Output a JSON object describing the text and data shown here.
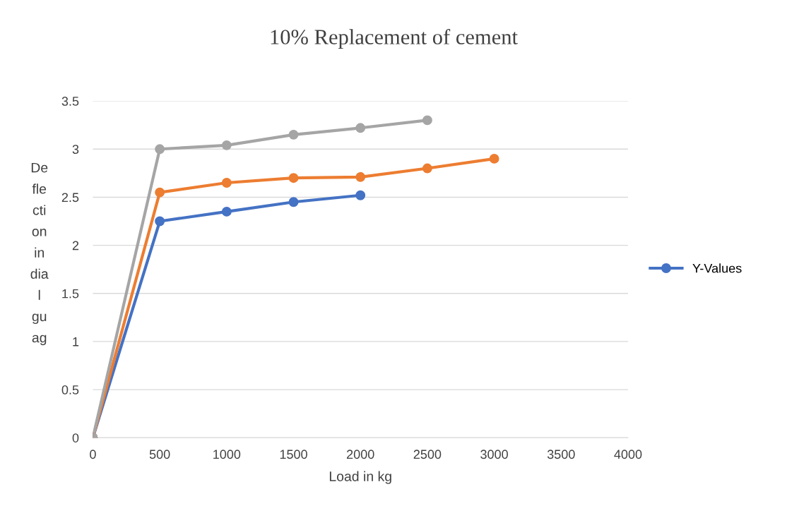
{
  "chart_data": {
    "type": "line",
    "title": "10% Replacement of cement",
    "xlabel": "Load in kg",
    "ylabel": "De\nfle\ncti\non\nin\ndia\nl\ngu\nag",
    "series": [
      {
        "name": "Y-Values",
        "color": "#4472c4",
        "x": [
          0,
          500,
          1000,
          1500,
          2000
        ],
        "values": [
          0,
          2.25,
          2.35,
          2.45,
          2.52
        ]
      },
      {
        "color": "#ed7d31",
        "x": [
          0,
          500,
          1000,
          1500,
          2000,
          2500,
          3000
        ],
        "values": [
          0,
          2.55,
          2.65,
          2.7,
          2.71,
          2.8,
          2.9
        ]
      },
      {
        "color": "#a5a5a5",
        "x": [
          0,
          500,
          1000,
          1500,
          2000,
          2500
        ],
        "values": [
          0,
          3.0,
          3.04,
          3.15,
          3.22,
          3.3
        ]
      }
    ],
    "xlim": [
      0,
      4000
    ],
    "xticks": [
      0,
      500,
      1000,
      1500,
      2000,
      2500,
      3000,
      3500,
      4000
    ],
    "ylim": [
      0,
      3.5
    ],
    "yticks": [
      0,
      0.5,
      1,
      1.5,
      2,
      2.5,
      3,
      3.5
    ],
    "grid": "y",
    "legend": "right",
    "marker": "circle",
    "line_style": "solid"
  }
}
